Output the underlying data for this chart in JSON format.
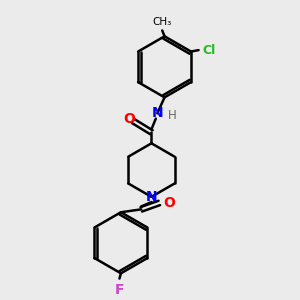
{
  "bg_color": "#ebebeb",
  "bond_color": "#000000",
  "bond_width": 1.8,
  "figsize": [
    3.0,
    3.0
  ],
  "dpi": 100,
  "xlim": [
    0,
    10
  ],
  "ylim": [
    0,
    10
  ]
}
